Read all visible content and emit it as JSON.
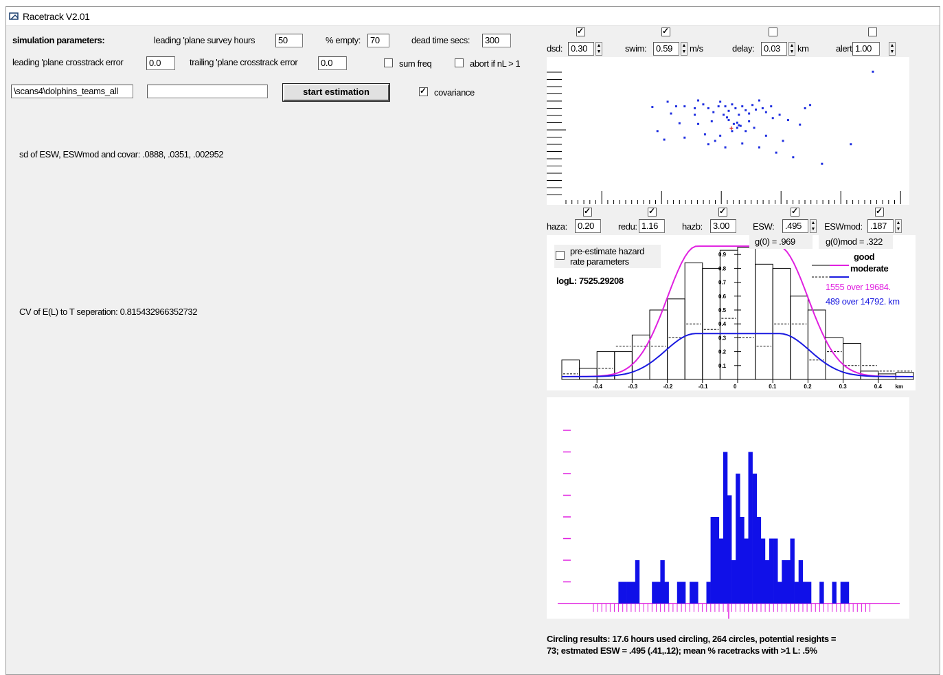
{
  "window": {
    "title": "Racetrack V2.01",
    "icon": "app-icon"
  },
  "sim": {
    "section_label": "simulation parameters:",
    "survey_hours_label": "leading 'plane survey hours",
    "survey_hours_value": "50",
    "pct_empty_label": "% empty:",
    "pct_empty_value": "70",
    "dead_time_label": "dead time secs:",
    "dead_time_value": "300",
    "lead_error_label": "leading 'plane crosstrack error",
    "lead_error_value": "0.0",
    "trail_error_label": "trailing 'plane crosstrack error",
    "trail_error_value": "0.0",
    "sum_freq_label": "sum freq",
    "sum_freq_checked": false,
    "abort_label": "abort if nL > 1",
    "abort_checked": false
  },
  "file": {
    "path_value": "\\scans4\\dolphins_teams_all",
    "second_value": ""
  },
  "start_button": "start estimation",
  "covariance": {
    "label": "covariance",
    "checked": true
  },
  "results": {
    "sd_text": "sd of ESW, ESWmod and covar: .0888, .0351, .002952",
    "cv_text": "CV of E(L) to T seperation: 0.815432966352732"
  },
  "top_controls": {
    "dsd_label": "dsd:",
    "dsd_value": "0.30",
    "dsd_checked": true,
    "swim_label": "swim:",
    "swim_value": "0.59",
    "swim_unit": "m/s",
    "swim_checked": true,
    "delay_label": "delay:",
    "delay_value": "0.03",
    "delay_unit": "km",
    "delay_checked": false,
    "alert_label": "alert:",
    "alert_value": "1.00",
    "alert_checked": false
  },
  "mid_controls": {
    "haza_label": "haza:",
    "haza_value": "0.20",
    "haza_checked": true,
    "redu_label": "redu:",
    "redu_value": "1.16",
    "redu_checked": true,
    "hazb_label": "hazb:",
    "hazb_value": "3.00",
    "hazb_checked": true,
    "esw_label": "ESW:",
    "esw_value": ".495",
    "esw_checked": true,
    "eswmod_label": "ESWmod:",
    "eswmod_value": ".187",
    "eswmod_checked": true
  },
  "detection_chart": {
    "g0_text": "g(0) = .969",
    "g0mod_text": "g(0)mod = .322",
    "pre_estimate_label_1": "pre-estimate hazard",
    "pre_estimate_label_2": "rate parameters",
    "pre_estimate_checked": false,
    "logl_text": "logL: 7525.29208",
    "legend_good": "good",
    "legend_moderate": "moderate",
    "good_summary": "1555 over 19684.",
    "moderate_summary": "489 over 14792. km",
    "good_color": "#e020e0",
    "moderate_color": "#1a1ae0"
  },
  "footer": {
    "line1": "Circling results: 17.6 hours used circling, 264 circles, potential resights =",
    "line2": "73;  estmated ESW = .495 (.41,.12); mean % racetracks with >1 L: .5%"
  },
  "chart_data": [
    {
      "type": "scatter",
      "title": "",
      "points": [
        [
          0.85,
          0.86
        ],
        [
          -0.45,
          0.32
        ],
        [
          -0.36,
          0.4
        ],
        [
          -0.34,
          0.22
        ],
        [
          -0.31,
          0.33
        ],
        [
          -0.29,
          0.07
        ],
        [
          -0.26,
          0.33
        ],
        [
          -0.2,
          0.3
        ],
        [
          -0.18,
          0.42
        ],
        [
          -0.15,
          0.36
        ],
        [
          -0.12,
          0.3
        ],
        [
          -0.09,
          0.24
        ],
        [
          -0.06,
          0.33
        ],
        [
          -0.05,
          0.4
        ],
        [
          -0.03,
          0.2
        ],
        [
          -0.02,
          0.33
        ],
        [
          0.0,
          0.26
        ],
        [
          0.02,
          0.36
        ],
        [
          0.04,
          0.3
        ],
        [
          0.06,
          0.2
        ],
        [
          0.08,
          0.33
        ],
        [
          0.1,
          0.27
        ],
        [
          0.12,
          0.22
        ],
        [
          0.14,
          0.35
        ],
        [
          0.16,
          0.28
        ],
        [
          0.18,
          0.42
        ],
        [
          0.2,
          0.3
        ],
        [
          0.22,
          0.24
        ],
        [
          0.25,
          0.33
        ],
        [
          0.3,
          0.2
        ],
        [
          0.45,
          0.3
        ],
        [
          0.48,
          0.35
        ],
        [
          0.38,
          -0.45
        ],
        [
          0.28,
          -0.38
        ],
        [
          0.18,
          -0.3
        ],
        [
          0.08,
          -0.24
        ],
        [
          -0.02,
          -0.3
        ],
        [
          -0.08,
          -0.2
        ],
        [
          -0.14,
          -0.1
        ],
        [
          -0.18,
          0.06
        ],
        [
          -0.1,
          0.1
        ],
        [
          0.0,
          0.12
        ],
        [
          0.05,
          0.08
        ],
        [
          0.1,
          -0.05
        ],
        [
          0.15,
          0.0
        ],
        [
          0.22,
          -0.12
        ],
        [
          0.32,
          -0.2
        ],
        [
          -0.26,
          -0.15
        ],
        [
          -0.38,
          -0.18
        ],
        [
          -0.05,
          -0.12
        ],
        [
          0.02,
          -0.05
        ],
        [
          0.12,
          0.1
        ],
        [
          -0.2,
          0.2
        ],
        [
          0.42,
          0.05
        ],
        [
          -0.12,
          -0.25
        ],
        [
          0.26,
          0.15
        ],
        [
          0.35,
          0.12
        ],
        [
          -0.42,
          -0.05
        ],
        [
          0.06,
          0.04
        ],
        [
          -0.01,
          0.16
        ],
        [
          0.72,
          -0.25
        ],
        [
          0.55,
          -0.55
        ],
        [
          0.05,
          0.0
        ],
        [
          0.03,
          0.06
        ],
        [
          0.07,
          0.03
        ]
      ],
      "xlim": [
        -1,
        1
      ],
      "ylim": [
        -1,
        1
      ]
    },
    {
      "type": "bar",
      "xlabel": "km",
      "x_ticks": [
        "-0.4",
        "-0.3",
        "-0.2",
        "-0.1",
        "0",
        "0.1",
        "0.2",
        "0.3",
        "0.4",
        "km"
      ],
      "y_ticks": [
        "0.1",
        "0.2",
        "0.3",
        "0.4",
        "0.5",
        "0.6",
        "0.7",
        "0.8",
        "0.9"
      ],
      "bin_centers": [
        -0.475,
        -0.425,
        -0.375,
        -0.325,
        -0.275,
        -0.225,
        -0.175,
        -0.125,
        -0.075,
        -0.025,
        0.025,
        0.075,
        0.125,
        0.175,
        0.225,
        0.275,
        0.325,
        0.375,
        0.425,
        0.475
      ],
      "series": [
        {
          "name": "good",
          "values": [
            0.14,
            0.08,
            0.2,
            0.2,
            0.32,
            0.5,
            0.58,
            0.84,
            0.8,
            0.93,
            0.95,
            0.83,
            0.8,
            0.6,
            0.5,
            0.3,
            0.26,
            0.06,
            0.04,
            0.05
          ]
        },
        {
          "name": "moderate",
          "values": [
            0.04,
            0.02,
            0.08,
            0.24,
            0.24,
            0.24,
            0.3,
            0.4,
            0.36,
            0.44,
            0.3,
            0.24,
            0.4,
            0.4,
            0.14,
            0.2,
            0.1,
            0.1,
            0.06,
            0.06
          ]
        }
      ],
      "curves": {
        "good": {
          "plateau": 0.96,
          "half_width": 0.115,
          "edge": 0.02
        },
        "moderate": {
          "plateau": 0.33,
          "half_width": 0.12,
          "edge": 0.02
        }
      },
      "ylim": [
        0,
        1.0
      ],
      "xlim": [
        -0.5,
        0.5
      ]
    },
    {
      "type": "bar",
      "title": "",
      "values": [
        0,
        0,
        0,
        0,
        1,
        1,
        1,
        1,
        2,
        0,
        0,
        0,
        1,
        1,
        2,
        1,
        0,
        0,
        1,
        1,
        0,
        1,
        1,
        0,
        0,
        1,
        4,
        4,
        3,
        7,
        5,
        2,
        6,
        4,
        3,
        7,
        6,
        4,
        3,
        2,
        3,
        3,
        1,
        2,
        2,
        3,
        1,
        2,
        1,
        1,
        0,
        0,
        1,
        0,
        0,
        1,
        0,
        1,
        1,
        0,
        0,
        0,
        0
      ],
      "ylim": [
        0,
        8
      ]
    }
  ]
}
